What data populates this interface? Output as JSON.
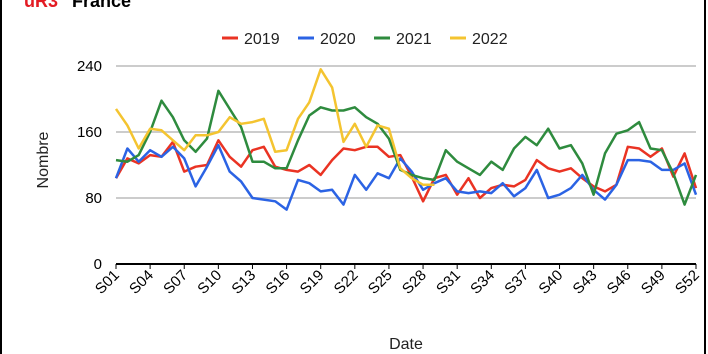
{
  "header": {
    "code": "uR3",
    "country": "France"
  },
  "chart_data": {
    "type": "line",
    "title": "",
    "xlabel": "Date",
    "ylabel": "Nombre",
    "ylim": [
      0,
      240
    ],
    "yticks": [
      0,
      80,
      160,
      240
    ],
    "grid": true,
    "legend": "top",
    "categories": [
      "S01",
      "S02",
      "S03",
      "S04",
      "S05",
      "S06",
      "S07",
      "S08",
      "S09",
      "S10",
      "S11",
      "S12",
      "S13",
      "S14",
      "S15",
      "S16",
      "S17",
      "S18",
      "S19",
      "S20",
      "S21",
      "S22",
      "S23",
      "S24",
      "S25",
      "S26",
      "S27",
      "S28",
      "S29",
      "S30",
      "S31",
      "S32",
      "S33",
      "S34",
      "S35",
      "S36",
      "S37",
      "S38",
      "S39",
      "S40",
      "S41",
      "S42",
      "S43",
      "S44",
      "S45",
      "S46",
      "S47",
      "S48",
      "S49",
      "S50",
      "S51",
      "S52"
    ],
    "xtick_labels": [
      "S01",
      "S04",
      "S07",
      "S10",
      "S13",
      "S16",
      "S19",
      "S22",
      "S25",
      "S28",
      "S31",
      "S34",
      "S37",
      "S40",
      "S43",
      "S46",
      "S49",
      "S52"
    ],
    "series": [
      {
        "name": "2019",
        "color": "#ea3323",
        "values": [
          104,
          128,
          122,
          132,
          130,
          148,
          112,
          118,
          120,
          150,
          130,
          118,
          138,
          142,
          118,
          114,
          112,
          120,
          108,
          126,
          140,
          138,
          142,
          142,
          130,
          132,
          106,
          76,
          104,
          108,
          84,
          104,
          80,
          92,
          96,
          94,
          102,
          126,
          116,
          112,
          116,
          104,
          94,
          88,
          96,
          142,
          140,
          130,
          140,
          106,
          134,
          92
        ]
      },
      {
        "name": "2020",
        "color": "#2b63e4",
        "values": [
          104,
          140,
          124,
          138,
          130,
          142,
          128,
          94,
          118,
          144,
          112,
          100,
          80,
          78,
          76,
          66,
          102,
          98,
          88,
          90,
          72,
          108,
          90,
          110,
          104,
          128,
          112,
          90,
          98,
          104,
          88,
          86,
          88,
          86,
          98,
          82,
          92,
          114,
          80,
          84,
          92,
          108,
          90,
          78,
          96,
          126,
          126,
          124,
          114,
          114,
          122,
          84
        ]
      },
      {
        "name": "2021",
        "color": "#2e8b3e",
        "values": [
          126,
          124,
          132,
          160,
          198,
          178,
          150,
          136,
          152,
          210,
          188,
          166,
          124,
          124,
          116,
          116,
          150,
          180,
          190,
          186,
          186,
          190,
          178,
          170,
          152,
          114,
          108,
          104,
          102,
          138,
          124,
          116,
          108,
          124,
          114,
          140,
          154,
          144,
          164,
          140,
          144,
          122,
          84,
          134,
          158,
          162,
          172,
          140,
          138,
          110,
          72,
          108
        ]
      },
      {
        "name": "2022",
        "color": "#f4c430",
        "values": [
          188,
          168,
          140,
          164,
          162,
          150,
          138,
          156,
          156,
          160,
          178,
          170,
          172,
          176,
          136,
          138,
          176,
          196,
          236,
          214,
          148,
          170,
          142,
          168,
          164,
          116,
          104,
          96,
          96,
          null,
          null,
          null,
          null,
          null,
          null,
          null,
          null,
          null,
          null,
          null,
          null,
          null,
          null,
          null,
          null,
          null,
          null,
          null,
          null,
          null,
          null,
          null
        ]
      }
    ]
  }
}
